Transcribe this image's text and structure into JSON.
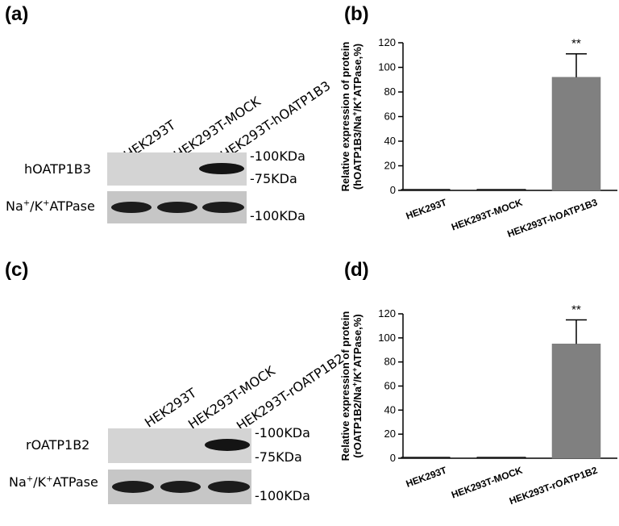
{
  "panels": {
    "a": {
      "label": "(a)",
      "lanes": [
        "HEK293T",
        "HEK293T-MOCK",
        "HEK293T-hOATP1B3"
      ],
      "row1_label": "hOATP1B3",
      "row2_label_parts": [
        "Na",
        "+",
        "/K",
        "+",
        "ATPase"
      ],
      "markers": [
        "-100KDa",
        "-75KDa",
        "-100KDa"
      ]
    },
    "b": {
      "label": "(b)"
    },
    "c": {
      "label": "(c)",
      "lanes": [
        "HEK293T",
        "HEK293T-MOCK",
        "HEK293T-rOATP1B2"
      ],
      "row1_label": "rOATP1B2",
      "row2_label_parts": [
        "Na",
        "+",
        "/K",
        "+",
        "ATPase"
      ],
      "markers": [
        "-100KDa",
        "-75KDa",
        "-100KDa"
      ]
    },
    "d": {
      "label": "(d)"
    }
  },
  "chart_data": [
    {
      "type": "bar",
      "panel": "b",
      "categories": [
        "HEK293T",
        "HEK293T-MOCK",
        "HEK293T-hOATP1B3"
      ],
      "values": [
        0.3,
        0.3,
        92
      ],
      "errors": [
        0,
        0,
        19
      ],
      "annotations": [
        "",
        "",
        "**"
      ],
      "ylabel_line1": "Relative expression of protein",
      "ylabel_line2_parts": [
        "(hOATP1B3/Na",
        "+",
        "/K",
        "+",
        "ATPase,%)"
      ],
      "ylim": [
        0,
        120
      ],
      "yticks": [
        0,
        20,
        40,
        60,
        80,
        100,
        120
      ],
      "bar_color": "#808080",
      "grid": false
    },
    {
      "type": "bar",
      "panel": "d",
      "categories": [
        "HEK293T",
        "HEK293T-MOCK",
        "HEK293T-rOATP1B2"
      ],
      "values": [
        0.3,
        0.3,
        95
      ],
      "errors": [
        0,
        0,
        20
      ],
      "annotations": [
        "",
        "",
        "**"
      ],
      "ylabel_line1": "Relative expression of protein",
      "ylabel_line2_parts": [
        "(rOATP1B2/Na",
        "+",
        "/K",
        "+",
        "ATPase,%)"
      ],
      "ylim": [
        0,
        120
      ],
      "yticks": [
        0,
        20,
        40,
        60,
        80,
        100,
        120
      ],
      "bar_color": "#808080",
      "grid": false
    }
  ]
}
